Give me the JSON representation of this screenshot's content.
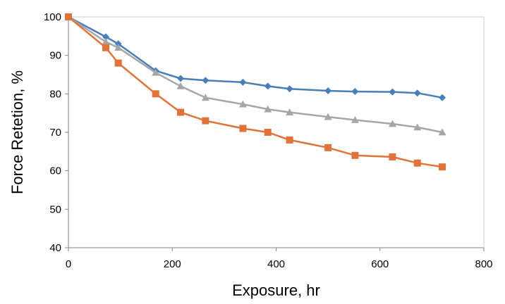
{
  "chart_data": {
    "type": "line",
    "title": "",
    "xlabel": "Exposure, hr",
    "ylabel": "Force Retetion, %",
    "xlim": [
      0,
      800
    ],
    "ylim": [
      40,
      100
    ],
    "x_ticks": [
      0,
      200,
      400,
      600,
      800
    ],
    "y_ticks": [
      40,
      50,
      60,
      70,
      80,
      90,
      100
    ],
    "grid": false,
    "legend": "none",
    "series": [
      {
        "color": "#4a7ebb",
        "marker": "diamond",
        "points": [
          [
            0,
            100
          ],
          [
            72,
            94.8
          ],
          [
            96,
            93
          ],
          [
            168,
            86
          ],
          [
            216,
            84
          ],
          [
            264,
            83.5
          ],
          [
            336,
            83
          ],
          [
            384,
            82
          ],
          [
            426,
            81.3
          ],
          [
            500,
            80.8
          ],
          [
            552,
            80.6
          ],
          [
            624,
            80.5
          ],
          [
            672,
            80.2
          ],
          [
            720,
            79
          ]
        ]
      },
      {
        "color": "#a6a6a6",
        "marker": "triangle",
        "points": [
          [
            0,
            100
          ],
          [
            72,
            93.5
          ],
          [
            96,
            92
          ],
          [
            168,
            85.5
          ],
          [
            216,
            82
          ],
          [
            264,
            79
          ],
          [
            336,
            77.3
          ],
          [
            384,
            76
          ],
          [
            426,
            75.2
          ],
          [
            500,
            74
          ],
          [
            552,
            73.2
          ],
          [
            624,
            72.2
          ],
          [
            672,
            71.3
          ],
          [
            720,
            70
          ]
        ]
      },
      {
        "color": "#e0723a",
        "marker": "square",
        "points": [
          [
            0,
            100
          ],
          [
            72,
            92
          ],
          [
            96,
            88
          ],
          [
            168,
            80
          ],
          [
            216,
            75.2
          ],
          [
            264,
            73
          ],
          [
            336,
            71
          ],
          [
            384,
            70
          ],
          [
            426,
            68
          ],
          [
            500,
            66
          ],
          [
            552,
            64
          ],
          [
            624,
            63.6
          ],
          [
            672,
            62
          ],
          [
            720,
            61
          ]
        ]
      }
    ]
  }
}
